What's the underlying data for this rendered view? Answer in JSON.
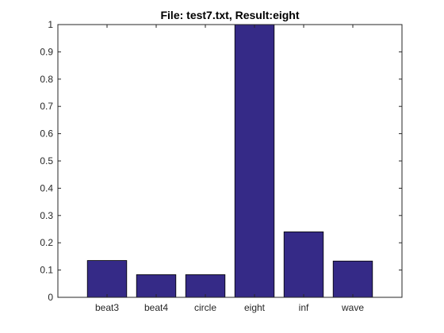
{
  "chart_data": {
    "type": "bar",
    "title": "File: test7.txt, Result:eight",
    "xlabel": "",
    "ylabel": "",
    "categories": [
      "beat3",
      "beat4",
      "circle",
      "eight",
      "inf",
      "wave"
    ],
    "values": [
      0.135,
      0.083,
      0.083,
      1.0,
      0.24,
      0.133
    ],
    "ylim": [
      0,
      1
    ],
    "yticks": [
      "0",
      "0.1",
      "0.2",
      "0.3",
      "0.4",
      "0.5",
      "0.6",
      "0.7",
      "0.8",
      "0.9",
      "1"
    ],
    "grid": false,
    "legend": "none",
    "bar_color": "#352a87",
    "edge_color": "#000000"
  }
}
